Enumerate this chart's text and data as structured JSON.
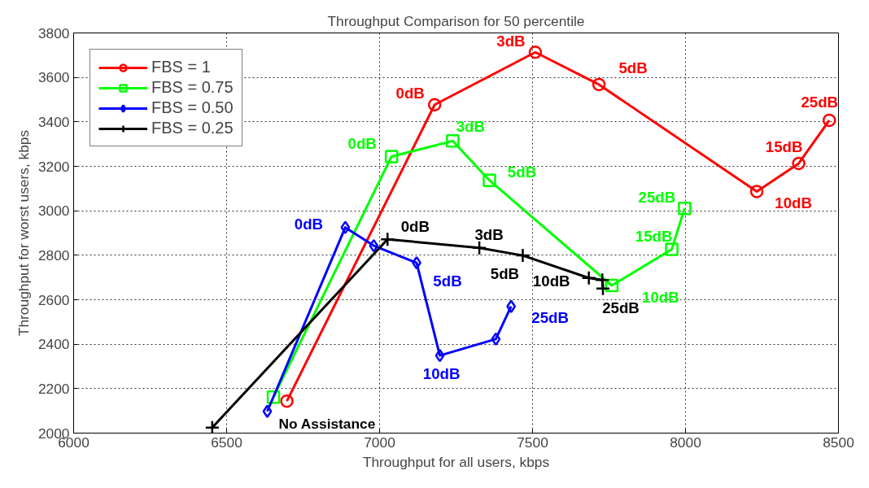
{
  "chart_data": {
    "type": "line",
    "title": "Throughput Comparison for 50 percentile",
    "xlabel": "Throughput for all users, kbps",
    "ylabel": "Throughput for worst users, kbps",
    "xlim": [
      6000,
      8500
    ],
    "xticks": [
      6000,
      6500,
      7000,
      7500,
      8000,
      8500
    ],
    "ylim": [
      2000,
      3800
    ],
    "yticks": [
      2000,
      2200,
      2400,
      2600,
      2800,
      3000,
      3200,
      3400,
      3600,
      3800
    ],
    "grid": true,
    "legend": "top left",
    "line_style": "solid",
    "series": [
      {
        "name": "FBS = 1",
        "color": "#ff0000",
        "marker": "circle",
        "x": [
          6697,
          7180,
          7509,
          7717,
          8233,
          8370,
          8470
        ],
        "values": [
          2144,
          3477,
          3713,
          3568,
          3087,
          3213,
          3407
        ]
      },
      {
        "name": "FBS = 0.75",
        "color": "#00ff00",
        "marker": "square",
        "x": [
          6653,
          7039,
          7239,
          7359,
          7759,
          7955,
          7997
        ],
        "values": [
          2162,
          3244,
          3314,
          3137,
          2664,
          2827,
          3011
        ]
      },
      {
        "name": "FBS = 0.50",
        "color": "#0000ff",
        "marker": "diamond",
        "x": [
          6633,
          6888,
          6981,
          7121,
          7197,
          7380,
          7430
        ],
        "values": [
          2098,
          2925,
          2843,
          2766,
          2349,
          2423,
          2570
        ]
      },
      {
        "name": "FBS = 0.25",
        "color": "#000000",
        "marker": "cross",
        "x": [
          6453,
          7026,
          7326,
          7468,
          7684,
          7728,
          7730
        ],
        "values": [
          2025,
          2872,
          2833,
          2799,
          2698,
          2689,
          2650
        ]
      }
    ],
    "annotations": [
      {
        "text": "0dB",
        "x": 7180,
        "y": 3477
      },
      {
        "text": "3dB",
        "x": 7509,
        "y": 3713
      },
      {
        "text": "5dB",
        "x": 7717,
        "y": 3568
      },
      {
        "text": "10dB",
        "x": 8233,
        "y": 3087
      },
      {
        "text": "15dB",
        "x": 8370,
        "y": 3213
      },
      {
        "text": "25dB",
        "x": 8470,
        "y": 3407
      },
      {
        "text": "0dB",
        "x": 7039,
        "y": 3244
      },
      {
        "text": "3dB",
        "x": 7239,
        "y": 3314
      },
      {
        "text": "5dB",
        "x": 7359,
        "y": 3137
      },
      {
        "text": "10dB",
        "x": 7759,
        "y": 2664
      },
      {
        "text": "15dB",
        "x": 7955,
        "y": 2827
      },
      {
        "text": "25dB",
        "x": 7997,
        "y": 3011
      },
      {
        "text": "0dB",
        "x": 6888,
        "y": 2925
      },
      {
        "text": "5dB",
        "x": 7121,
        "y": 2766
      },
      {
        "text": "10dB",
        "x": 7197,
        "y": 2349
      },
      {
        "text": "25dB",
        "x": 7430,
        "y": 2570
      },
      {
        "text": "0dB",
        "x": 7026,
        "y": 2872
      },
      {
        "text": "3dB",
        "x": 7326,
        "y": 2833
      },
      {
        "text": "5dB",
        "x": 7468,
        "y": 2799
      },
      {
        "text": "10dB",
        "x": 7684,
        "y": 2698
      },
      {
        "text": "25dB",
        "x": 7730,
        "y": 2650
      },
      {
        "text": "No Assistance",
        "x": 6697,
        "y": 2144
      }
    ]
  }
}
